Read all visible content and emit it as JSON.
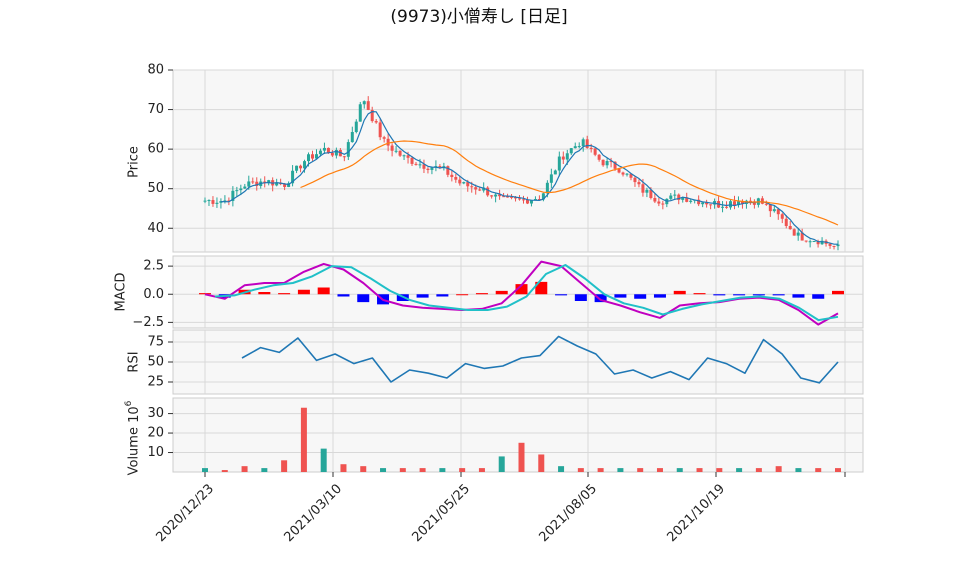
{
  "title": "(9973)小僧寿し [日足]",
  "colors": {
    "up": "#26a69a",
    "down": "#ef5350",
    "ma_short": "#1f77b4",
    "ma_long": "#ff7f0e",
    "macd": "#c000c0",
    "signal": "#20c0c8",
    "hist_pos": "#ff0000",
    "hist_neg": "#0000ff",
    "rsi": "#1f77b4",
    "grid": "#d8d8d8",
    "panel_bg": "#f7f7f7"
  },
  "chart_data": [
    {
      "type": "candlestick",
      "panel": "price",
      "ylabel": "Price",
      "ylim": [
        34,
        80
      ],
      "yticks": [
        40,
        50,
        60,
        70,
        80
      ],
      "xticks": [
        "2020/12/23",
        "2021/03/10",
        "2021/05/25",
        "2021/08/05",
        "2021/10/19"
      ],
      "series_close": [
        {
          "date": "2020/12/23",
          "value": 47
        },
        {
          "date": "2021/01/05",
          "value": 47
        },
        {
          "date": "2021/01/12",
          "value": 51
        },
        {
          "date": "2021/01/20",
          "value": 52
        },
        {
          "date": "2021/02/01",
          "value": 51
        },
        {
          "date": "2021/02/10",
          "value": 57
        },
        {
          "date": "2021/02/18",
          "value": 60
        },
        {
          "date": "2021/02/26",
          "value": 58
        },
        {
          "date": "2021/03/02",
          "value": 73
        },
        {
          "date": "2021/03/05",
          "value": 62
        },
        {
          "date": "2021/03/10",
          "value": 58
        },
        {
          "date": "2021/03/20",
          "value": 56
        },
        {
          "date": "2021/04/01",
          "value": 55
        },
        {
          "date": "2021/04/15",
          "value": 51
        },
        {
          "date": "2021/04/28",
          "value": 50
        },
        {
          "date": "2021/05/10",
          "value": 47
        },
        {
          "date": "2021/05/25",
          "value": 47
        },
        {
          "date": "2021/06/03",
          "value": 48
        },
        {
          "date": "2021/06/10",
          "value": 58
        },
        {
          "date": "2021/06/17",
          "value": 62
        },
        {
          "date": "2021/06/25",
          "value": 57
        },
        {
          "date": "2021/07/05",
          "value": 55
        },
        {
          "date": "2021/07/20",
          "value": 50
        },
        {
          "date": "2021/08/05",
          "value": 47
        },
        {
          "date": "2021/08/20",
          "value": 48
        },
        {
          "date": "2021/09/03",
          "value": 47
        },
        {
          "date": "2021/09/17",
          "value": 46
        },
        {
          "date": "2021/10/01",
          "value": 47
        },
        {
          "date": "2021/10/19",
          "value": 47
        },
        {
          "date": "2021/10/29",
          "value": 43
        },
        {
          "date": "2021/11/10",
          "value": 38
        },
        {
          "date": "2021/11/22",
          "value": 37
        },
        {
          "date": "2021/12/01",
          "value": 35
        }
      ]
    },
    {
      "type": "line",
      "panel": "macd",
      "ylabel": "MACD",
      "ylim": [
        -3.0,
        3.4
      ],
      "yticks": [
        -2.5,
        0.0,
        2.5
      ],
      "ytick_labels": [
        "−2.5",
        "0.0",
        "2.5"
      ],
      "series": [
        {
          "values": [
            0.0,
            -0.4,
            0.8,
            1.0,
            1.0,
            2.0,
            2.7,
            2.2,
            1.0,
            -0.5,
            -1.0,
            -1.2,
            -1.3,
            -1.4,
            -1.3,
            -0.8,
            0.8,
            2.9,
            2.5,
            1.0,
            -0.5,
            -1.0,
            -1.6,
            -2.1,
            -1.0,
            -0.8,
            -0.7,
            -0.4,
            -0.3,
            -0.5,
            -1.4,
            -2.7,
            -1.7
          ]
        },
        {
          "values": [
            -0.2,
            -0.1,
            0.4,
            0.8,
            1.0,
            1.6,
            2.5,
            2.4,
            1.4,
            0.3,
            -0.5,
            -1.0,
            -1.2,
            -1.4,
            -1.4,
            -1.1,
            -0.2,
            1.8,
            2.6,
            1.4,
            0.0,
            -0.8,
            -1.2,
            -1.8,
            -1.3,
            -0.9,
            -0.6,
            -0.3,
            -0.2,
            -0.4,
            -1.2,
            -2.3,
            -2.0
          ]
        }
      ],
      "histogram": [
        0.1,
        -0.3,
        0.4,
        0.2,
        0.1,
        0.4,
        0.6,
        -0.2,
        -0.7,
        -0.9,
        -0.6,
        -0.3,
        -0.2,
        0.0,
        0.1,
        0.3,
        0.9,
        1.1,
        -0.1,
        -0.6,
        -0.7,
        -0.3,
        -0.4,
        -0.3,
        0.3,
        0.1,
        -0.1,
        -0.1,
        -0.1,
        -0.1,
        -0.3,
        -0.4,
        0.3
      ]
    },
    {
      "type": "line",
      "panel": "rsi",
      "ylabel": "RSI",
      "ylim": [
        10,
        90
      ],
      "yticks": [
        25,
        50,
        75
      ],
      "series": [
        {
          "values": [
            55,
            68,
            62,
            80,
            52,
            60,
            48,
            55,
            25,
            40,
            36,
            30,
            48,
            42,
            45,
            55,
            58,
            82,
            70,
            60,
            35,
            40,
            30,
            38,
            28,
            55,
            48,
            36,
            78,
            60,
            30,
            24,
            50
          ]
        }
      ]
    },
    {
      "type": "bar",
      "panel": "volume",
      "ylabel": "Volume",
      "ylabel_exponent": "10",
      "ylabel_exponent_power": "6",
      "ylim": [
        0,
        38
      ],
      "yticks": [
        10,
        20,
        30
      ],
      "values": [
        2,
        1,
        3,
        2,
        6,
        33,
        12,
        4,
        3,
        2,
        2,
        2,
        2,
        2,
        2,
        8,
        15,
        9,
        3,
        2,
        2,
        2,
        2,
        2,
        2,
        2,
        2,
        2,
        2,
        3,
        2,
        2,
        2
      ]
    }
  ]
}
